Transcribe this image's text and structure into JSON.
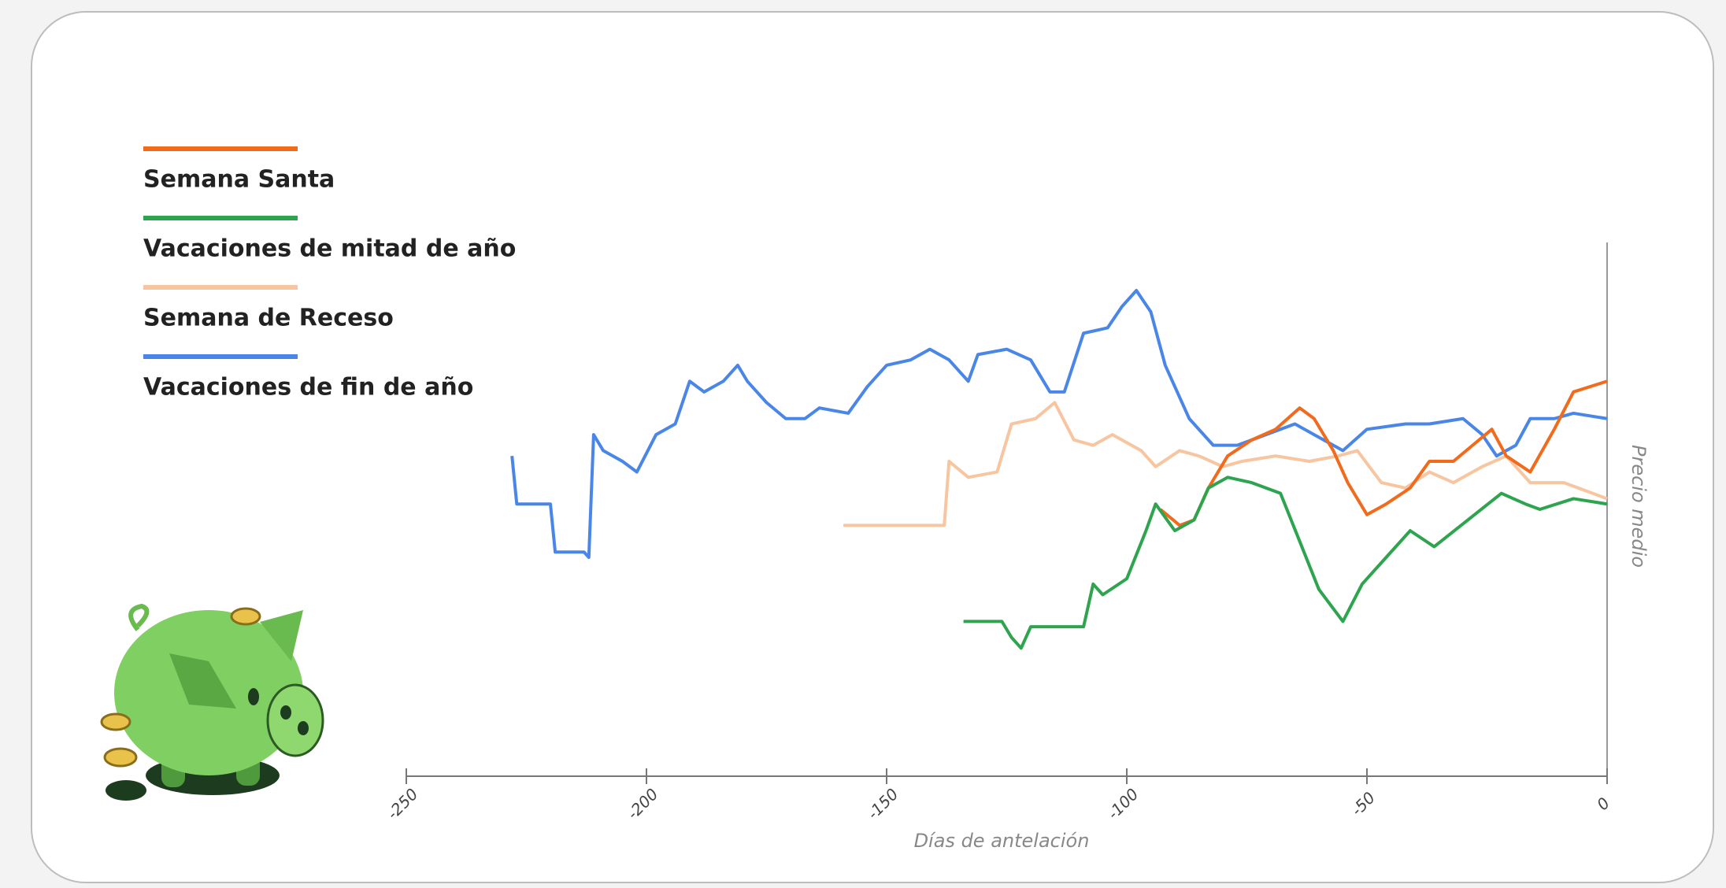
{
  "chart_data": {
    "type": "line",
    "xlabel": "Días de antelación",
    "ylabel": "Precio medio",
    "xlim": [
      -250,
      0
    ],
    "xticks": [
      -250,
      -200,
      -150,
      -100,
      -50,
      0
    ],
    "ylim": [
      0,
      100
    ],
    "legend": "upper left",
    "series": [
      {
        "name": "Semana Santa",
        "color": "#f26b1d",
        "x": [
          -93,
          -89,
          -86,
          -83,
          -79,
          -74,
          -69,
          -64,
          -61,
          -57,
          -54,
          -50,
          -46,
          -41,
          -37,
          -32,
          -28,
          -24,
          -21,
          -16,
          -11,
          -7,
          0
        ],
        "values": [
          50,
          47,
          48,
          54,
          60,
          63,
          65,
          69,
          67,
          61,
          55,
          49,
          51,
          54,
          59,
          59,
          62,
          65,
          60,
          57,
          65,
          72,
          74
        ]
      },
      {
        "name": "Vacaciones de mitad de año",
        "color": "#2ea44f",
        "x": [
          -134,
          -126,
          -124,
          -122,
          -120,
          -109,
          -107,
          -105,
          -100,
          -96,
          -94,
          -90,
          -86,
          -83,
          -79,
          -74,
          -68,
          -64,
          -60,
          -55,
          -51,
          -46,
          -41,
          -36,
          -29,
          -22,
          -17,
          -14,
          -7,
          0
        ],
        "values": [
          29,
          29,
          26,
          24,
          28,
          28,
          36,
          34,
          37,
          46,
          51,
          46,
          48,
          54,
          56,
          55,
          53,
          44,
          35,
          29,
          36,
          41,
          46,
          43,
          48,
          53,
          51,
          50,
          52,
          51
        ]
      },
      {
        "name": "Semana de Receso",
        "color": "#f7c59f",
        "x": [
          -159,
          -138,
          -137,
          -133,
          -127,
          -124,
          -119,
          -115,
          -111,
          -107,
          -103,
          -97,
          -94,
          -89,
          -85,
          -80,
          -76,
          -69,
          -62,
          -56,
          -52,
          -47,
          -42,
          -37,
          -32,
          -26,
          -21,
          -16,
          -9,
          0
        ],
        "values": [
          47,
          47,
          59,
          56,
          57,
          66,
          67,
          70,
          63,
          62,
          64,
          61,
          58,
          61,
          60,
          58,
          59,
          60,
          59,
          60,
          61,
          55,
          54,
          57,
          55,
          58,
          60,
          55,
          55,
          52
        ]
      },
      {
        "name": "Vacaciones de fin de año",
        "color": "#4a86e8",
        "x": [
          -228,
          -227,
          -220,
          -219,
          -213,
          -212,
          -211,
          -209,
          -205,
          -202,
          -198,
          -194,
          -191,
          -188,
          -184,
          -181,
          -179,
          -175,
          -171,
          -167,
          -164,
          -158,
          -154,
          -150,
          -145,
          -141,
          -137,
          -133,
          -131,
          -125,
          -120,
          -116,
          -113,
          -109,
          -104,
          -101,
          -98,
          -95,
          -92,
          -87,
          -82,
          -77,
          -71,
          -65,
          -61,
          -55,
          -50,
          -42,
          -37,
          -30,
          -26,
          -23,
          -19,
          -16,
          -11,
          -7,
          0
        ],
        "values": [
          60,
          51,
          51,
          42,
          42,
          41,
          64,
          61,
          59,
          57,
          64,
          66,
          74,
          72,
          74,
          77,
          74,
          70,
          67,
          67,
          69,
          68,
          73,
          77,
          78,
          80,
          78,
          74,
          79,
          80,
          78,
          72,
          72,
          83,
          84,
          88,
          91,
          87,
          77,
          67,
          62,
          62,
          64,
          66,
          64,
          61,
          65,
          66,
          66,
          67,
          64,
          60,
          62,
          67,
          67,
          68,
          67
        ]
      }
    ]
  }
}
